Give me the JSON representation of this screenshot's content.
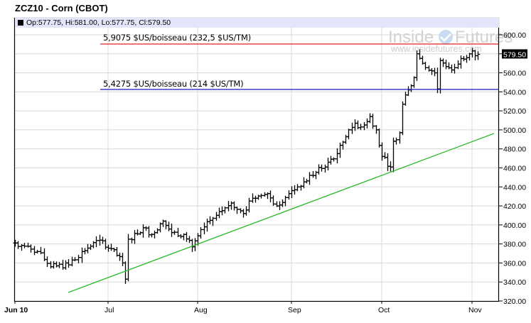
{
  "header": {
    "title": "ZCZ10 - Corn (CBOT)",
    "ohlc": "Op:577.75, Hi:581.00, Lo:577.75, Cl:579.50"
  },
  "watermark": {
    "brand_left": "Inside",
    "brand_right": "Futures",
    "url": "www.insidefutures.com"
  },
  "annotations": {
    "resistance": "5,9075 $US/boisseau (232,5 $US/TM)",
    "support": "5,4275 $US/boisseau (214 $US/TM)"
  },
  "colors": {
    "resistance": "#e02020",
    "support": "#1a1ab8",
    "trend": "#33bb33",
    "grid": "#d8d8d8",
    "info_bg": "#e4e4fa"
  },
  "chart_data": {
    "type": "bar",
    "subtype": "ohlc",
    "title": "ZCZ10 - Corn (CBOT)",
    "xlabel": "",
    "ylabel": "",
    "ylim": [
      320,
      600
    ],
    "y_ticks": [
      "320.00",
      "340.00",
      "360.00",
      "380.00",
      "400.00",
      "420.00",
      "440.00",
      "460.00",
      "480.00",
      "500.00",
      "520.00",
      "540.00",
      "560.00",
      "580.00",
      "600.00"
    ],
    "x_ticks": [
      "Jun 10",
      "Jul",
      "Aug",
      "Sep",
      "Oct",
      "Nov"
    ],
    "last_price_label": "579.50",
    "grid": true,
    "horizontal_lines": [
      {
        "label": "5,9075 $US/boisseau (232,5 $US/TM)",
        "value": 590.75,
        "color": "red"
      },
      {
        "label": "5,4275 $US/boisseau (214 $US/TM)",
        "value": 542.75,
        "color": "blue"
      }
    ],
    "trendline": {
      "from": {
        "date": "Jun 20",
        "value": 329
      },
      "to": {
        "date": "Nov 10",
        "value": 497
      },
      "color": "green"
    },
    "approx_close_path": [
      {
        "date": "Jun 10",
        "value": 381
      },
      {
        "date": "Jun 15",
        "value": 372
      },
      {
        "date": "Jun 18",
        "value": 356
      },
      {
        "date": "Jun 22",
        "value": 358
      },
      {
        "date": "Jun 25",
        "value": 372
      },
      {
        "date": "Jun 29",
        "value": 384
      },
      {
        "date": "Jul 2",
        "value": 375
      },
      {
        "date": "Jul 6",
        "value": 360
      },
      {
        "date": "Jul 7",
        "value": 343
      },
      {
        "date": "Jul 8",
        "value": 385
      },
      {
        "date": "Jul 13",
        "value": 397
      },
      {
        "date": "Jul 16",
        "value": 390
      },
      {
        "date": "Jul 20",
        "value": 404
      },
      {
        "date": "Jul 23",
        "value": 392
      },
      {
        "date": "Jul 27",
        "value": 390
      },
      {
        "date": "Jul 30",
        "value": 377
      },
      {
        "date": "Aug 3",
        "value": 398
      },
      {
        "date": "Aug 6",
        "value": 407
      },
      {
        "date": "Aug 10",
        "value": 418
      },
      {
        "date": "Aug 12",
        "value": 423
      },
      {
        "date": "Aug 16",
        "value": 412
      },
      {
        "date": "Aug 19",
        "value": 428
      },
      {
        "date": "Aug 24",
        "value": 433
      },
      {
        "date": "Aug 27",
        "value": 420
      },
      {
        "date": "Aug 31",
        "value": 433
      },
      {
        "date": "Sep 3",
        "value": 440
      },
      {
        "date": "Sep 8",
        "value": 452
      },
      {
        "date": "Sep 13",
        "value": 466
      },
      {
        "date": "Sep 16",
        "value": 475
      },
      {
        "date": "Sep 20",
        "value": 500
      },
      {
        "date": "Sep 22",
        "value": 507
      },
      {
        "date": "Sep 24",
        "value": 503
      },
      {
        "date": "Sep 27",
        "value": 514
      },
      {
        "date": "Sep 29",
        "value": 500
      },
      {
        "date": "Oct 1",
        "value": 472
      },
      {
        "date": "Oct 4",
        "value": 461
      },
      {
        "date": "Oct 5",
        "value": 488
      },
      {
        "date": "Oct 7",
        "value": 497
      },
      {
        "date": "Oct 8",
        "value": 527
      },
      {
        "date": "Oct 12",
        "value": 555
      },
      {
        "date": "Oct 13",
        "value": 580
      },
      {
        "date": "Oct 15",
        "value": 570
      },
      {
        "date": "Oct 19",
        "value": 560
      },
      {
        "date": "Oct 20",
        "value": 543
      },
      {
        "date": "Oct 21",
        "value": 573
      },
      {
        "date": "Oct 25",
        "value": 563
      },
      {
        "date": "Oct 28",
        "value": 575
      },
      {
        "date": "Nov 1",
        "value": 583
      },
      {
        "date": "Nov 2",
        "value": 578
      },
      {
        "date": "Nov 3",
        "value": 579.5
      }
    ]
  }
}
